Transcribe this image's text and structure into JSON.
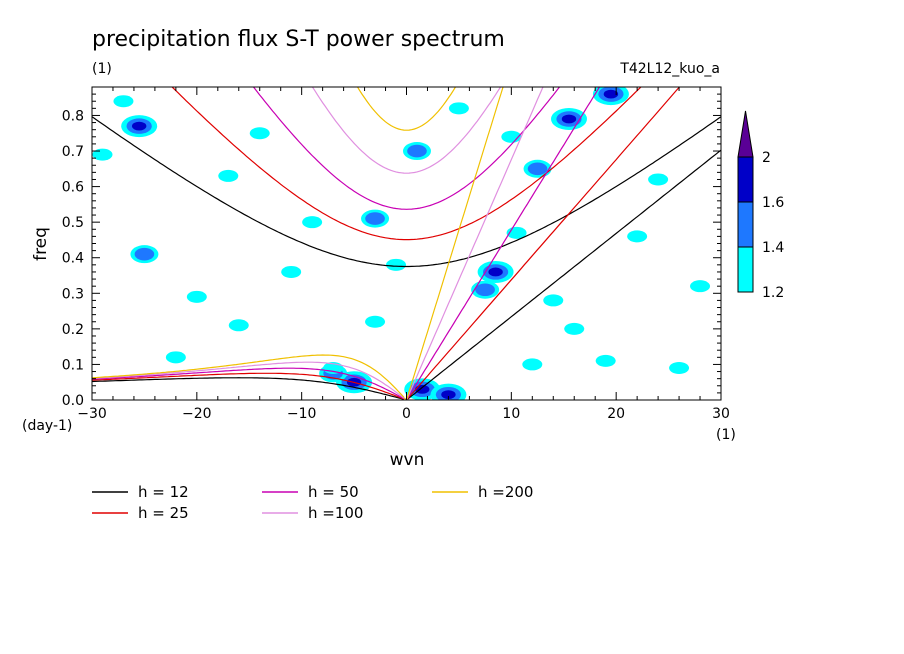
{
  "header": {
    "title": "precipitation flux S-T power spectrum",
    "units": "(1)",
    "run_id": "T42L12_kuo_a"
  },
  "chart_data": {
    "type": "heatmap",
    "title": "precipitation flux S-T power spectrum",
    "xlabel": "wvn",
    "ylabel": "freq",
    "x_unit_label": "(1)",
    "y_unit_label": "(day-1)",
    "xlim": [
      -30,
      30
    ],
    "ylim": [
      0,
      0.88
    ],
    "x_ticks": [
      -30,
      -20,
      -10,
      0,
      10,
      20,
      30
    ],
    "x_tick_labels": [
      "−30",
      "−20",
      "−10",
      "0",
      "10",
      "20",
      "30"
    ],
    "y_ticks": [
      0,
      0.1,
      0.2,
      0.3,
      0.4,
      0.5,
      0.6,
      0.7,
      0.8
    ],
    "y_tick_labels": [
      "0.0",
      "0.1",
      "0.2",
      "0.3",
      "0.4",
      "0.5",
      "0.6",
      "0.7",
      "0.8"
    ],
    "colorbar": {
      "levels": [
        1.2,
        1.4,
        1.6,
        2
      ],
      "level_labels": [
        "1.2",
        "1.4",
        "1.6",
        "2"
      ],
      "colors": [
        "#00ffff",
        "#1e78ff",
        "#0000c8",
        "#5a0096"
      ],
      "extend": "max"
    },
    "shaded_regions": [
      {
        "x": 1.5,
        "y": 0.03,
        "level": 3
      },
      {
        "x": 4,
        "y": 0.015,
        "level": 3
      },
      {
        "x": -5,
        "y": 0.05,
        "level": 3
      },
      {
        "x": -7,
        "y": 0.075,
        "level": 2
      },
      {
        "x": 8.5,
        "y": 0.36,
        "level": 3
      },
      {
        "x": 7.5,
        "y": 0.31,
        "level": 2
      },
      {
        "x": 10.5,
        "y": 0.47,
        "level": 1
      },
      {
        "x": 12.5,
        "y": 0.65,
        "level": 2
      },
      {
        "x": 15.5,
        "y": 0.79,
        "level": 3
      },
      {
        "x": 19.5,
        "y": 0.86,
        "level": 3
      },
      {
        "x": -25.5,
        "y": 0.77,
        "level": 3
      },
      {
        "x": -27,
        "y": 0.84,
        "level": 1
      },
      {
        "x": 1,
        "y": 0.7,
        "level": 2
      },
      {
        "x": -3,
        "y": 0.51,
        "level": 2
      },
      {
        "x": -25,
        "y": 0.41,
        "level": 2
      },
      {
        "x": -7,
        "y": 0.09,
        "level": 1
      },
      {
        "x": -16,
        "y": 0.21,
        "level": 1
      },
      {
        "x": -20,
        "y": 0.29,
        "level": 1
      },
      {
        "x": -3,
        "y": 0.22,
        "level": 1
      },
      {
        "x": 12,
        "y": 0.1,
        "level": 1
      },
      {
        "x": 19,
        "y": 0.11,
        "level": 1
      },
      {
        "x": 26,
        "y": 0.09,
        "level": 1
      },
      {
        "x": 22,
        "y": 0.46,
        "level": 1
      },
      {
        "x": -11,
        "y": 0.36,
        "level": 1
      },
      {
        "x": 14,
        "y": 0.28,
        "level": 1
      },
      {
        "x": -29,
        "y": 0.69,
        "level": 1
      },
      {
        "x": -17,
        "y": 0.63,
        "level": 1
      },
      {
        "x": 5,
        "y": 0.82,
        "level": 1
      },
      {
        "x": -9,
        "y": 0.5,
        "level": 1
      },
      {
        "x": 28,
        "y": 0.32,
        "level": 1
      },
      {
        "x": -22,
        "y": 0.12,
        "level": 1
      },
      {
        "x": 24,
        "y": 0.62,
        "level": 1
      },
      {
        "x": 16,
        "y": 0.2,
        "level": 1
      },
      {
        "x": -1,
        "y": 0.38,
        "level": 1
      },
      {
        "x": 10,
        "y": 0.74,
        "level": 1
      },
      {
        "x": -14,
        "y": 0.75,
        "level": 1
      }
    ],
    "dispersion_curves": [
      {
        "name": "h = 12",
        "h": 12,
        "color": "#000000"
      },
      {
        "name": "h = 25",
        "h": 25,
        "color": "#e00000"
      },
      {
        "name": "h = 50",
        "h": 50,
        "color": "#c800b4"
      },
      {
        "name": "h =100",
        "h": 100,
        "color": "#e090e0"
      },
      {
        "name": "h =200",
        "h": 200,
        "color": "#f0c000"
      }
    ]
  }
}
